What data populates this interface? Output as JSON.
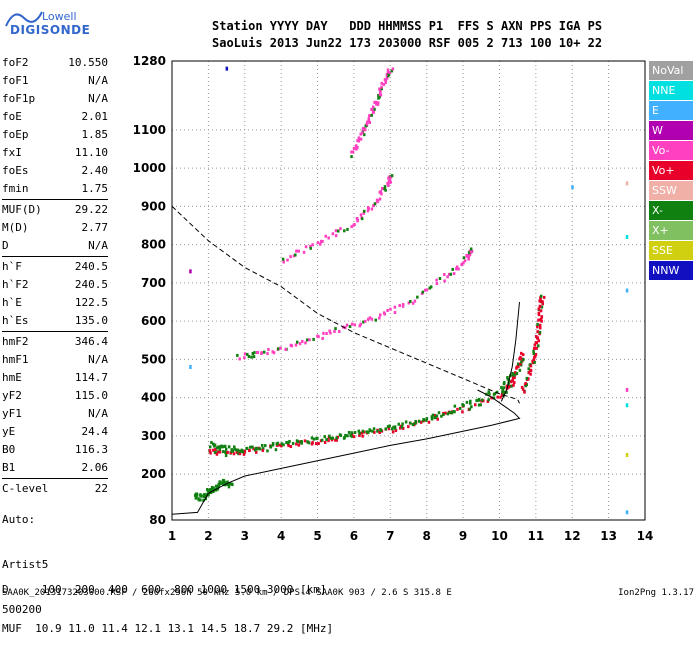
{
  "logo": {
    "line1": "Lowell",
    "line2": "DIGISONDE"
  },
  "header": {
    "row1": "Station YYYY DAY   DDD HHMMSS P1  FFS S AXN PPS IGA PS",
    "row2": "SaoLuis 2013 Jun22 173 203000 RSF 005 2 713 100 10+ 22"
  },
  "params": [
    [
      [
        "foF2",
        "10.550"
      ],
      [
        "foF1",
        "N/A"
      ],
      [
        "foF1p",
        "N/A"
      ],
      [
        "foE",
        "2.01"
      ],
      [
        "foEp",
        "1.85"
      ],
      [
        "fxI",
        "11.10"
      ],
      [
        "foEs",
        "2.40"
      ],
      [
        "fmin",
        "1.75"
      ]
    ],
    [
      [
        "MUF(D)",
        "29.22"
      ],
      [
        "M(D)",
        "2.77"
      ],
      [
        "D",
        "N/A"
      ]
    ],
    [
      [
        "h`F",
        "240.5"
      ],
      [
        "h`F2",
        "240.5"
      ],
      [
        "h`E",
        "122.5"
      ],
      [
        "h`Es",
        "135.0"
      ]
    ],
    [
      [
        "hmF2",
        "346.4"
      ],
      [
        "hmF1",
        "N/A"
      ],
      [
        "hmE",
        "114.7"
      ],
      [
        "yF2",
        "115.0"
      ],
      [
        "yF1",
        "N/A"
      ],
      [
        "yE",
        "24.4"
      ],
      [
        "B0",
        "116.3"
      ],
      [
        "B1",
        "2.06"
      ]
    ],
    [
      [
        "C-level",
        "22"
      ]
    ]
  ],
  "auto": [
    "Auto:",
    "Artist5",
    "500200"
  ],
  "muf_table": {
    "d_label": "D",
    "d_values": [
      "100",
      "200",
      "400",
      "600",
      "800",
      "1000",
      "1500",
      "3000"
    ],
    "d_unit": "[km]",
    "m_label": "MUF",
    "m_values": [
      "10.9",
      "11.0",
      "11.4",
      "12.1",
      "13.1",
      "14.5",
      "18.7",
      "29.2"
    ],
    "m_unit": "[MHz]"
  },
  "footer": {
    "left": "SAA0K_2013173203000.RSF / 260fx256h 50 kHz 5.0 km / DPS-4 SAA0K 903 / 2.6 S 315.8 E",
    "right": "Ion2Png 1.3.17"
  },
  "legend": [
    {
      "label": "NoVal",
      "color": "#a0a0a0"
    },
    {
      "label": "NNE",
      "color": "#00e0e0"
    },
    {
      "label": "E",
      "color": "#40b0ff"
    },
    {
      "label": "W",
      "color": "#b000b0"
    },
    {
      "label": "Vo-",
      "color": "#ff40c0"
    },
    {
      "label": "Vo+",
      "color": "#e8002a"
    },
    {
      "label": "SSW",
      "color": "#f0b0a8"
    },
    {
      "label": "X-",
      "color": "#108010"
    },
    {
      "label": "X+",
      "color": "#80c060"
    },
    {
      "label": "SSE",
      "color": "#d0d010"
    },
    {
      "label": "NNW",
      "color": "#1010c0"
    }
  ],
  "chart_data": {
    "type": "scatter",
    "xlim": [
      1,
      14
    ],
    "ylim": [
      80,
      1280
    ],
    "x_ticks": [
      "1",
      "2",
      "3",
      "4",
      "5",
      "6",
      "7",
      "8",
      "9",
      "10",
      "11",
      "12",
      "13",
      "14"
    ],
    "y_ticks": [
      80,
      200,
      300,
      400,
      500,
      600,
      700,
      800,
      900,
      1000,
      1100,
      1280
    ],
    "grid": "dotted",
    "traces": [
      {
        "name": "O-trace F",
        "color": "#e8002a",
        "points": [
          [
            2.0,
            265
          ],
          [
            2.5,
            258
          ],
          [
            3.0,
            262
          ],
          [
            4.0,
            275
          ],
          [
            5.0,
            290
          ],
          [
            6.0,
            305
          ],
          [
            7.0,
            320
          ],
          [
            8.0,
            345
          ],
          [
            9.0,
            375
          ],
          [
            10.0,
            405
          ],
          [
            10.3,
            440
          ],
          [
            10.5,
            480
          ],
          [
            10.6,
            520
          ]
        ]
      },
      {
        "name": "X-trace F",
        "color": "#108010",
        "points": [
          [
            2.0,
            280
          ],
          [
            2.5,
            270
          ],
          [
            3.0,
            268
          ],
          [
            4.0,
            282
          ],
          [
            5.0,
            295
          ],
          [
            6.0,
            310
          ],
          [
            7.0,
            325
          ],
          [
            8.0,
            350
          ],
          [
            9.0,
            382
          ],
          [
            10.0,
            425
          ],
          [
            10.4,
            470
          ]
        ]
      },
      {
        "name": "Vo+ tail",
        "color": "#e8002a",
        "points": [
          [
            10.6,
            420
          ],
          [
            10.8,
            470
          ],
          [
            10.95,
            520
          ],
          [
            11.05,
            580
          ],
          [
            11.1,
            640
          ],
          [
            11.15,
            665
          ]
        ]
      },
      {
        "name": "2F",
        "color": "#ff40c0",
        "points": [
          [
            2.8,
            510
          ],
          [
            3.5,
            520
          ],
          [
            4.5,
            545
          ],
          [
            5.5,
            580
          ],
          [
            6.5,
            610
          ],
          [
            7.5,
            650
          ],
          [
            8.5,
            720
          ],
          [
            9.1,
            770
          ],
          [
            9.2,
            790
          ]
        ]
      },
      {
        "name": "3F",
        "color": "#ff40c0",
        "points": [
          [
            4.0,
            760
          ],
          [
            5.0,
            810
          ],
          [
            6.0,
            860
          ],
          [
            6.5,
            905
          ],
          [
            6.9,
            960
          ],
          [
            7.0,
            980
          ]
        ]
      },
      {
        "name": "4F",
        "color": "#ff40c0",
        "points": [
          [
            5.9,
            1040
          ],
          [
            6.2,
            1090
          ],
          [
            6.4,
            1130
          ],
          [
            6.6,
            1180
          ],
          [
            6.8,
            1230
          ],
          [
            7.0,
            1270
          ]
        ]
      },
      {
        "name": "Es",
        "color": "#108010",
        "points": [
          [
            1.6,
            150
          ],
          [
            1.8,
            140
          ],
          [
            2.0,
            160
          ],
          [
            2.2,
            170
          ],
          [
            2.4,
            185
          ],
          [
            2.6,
            170
          ]
        ]
      }
    ],
    "profile_solid": [
      [
        1.0,
        95
      ],
      [
        1.7,
        100
      ],
      [
        2.0,
        150
      ],
      [
        2.5,
        175
      ],
      [
        3.0,
        195
      ],
      [
        4.0,
        215
      ],
      [
        5.0,
        235
      ],
      [
        6.0,
        255
      ],
      [
        7.0,
        275
      ],
      [
        8.0,
        292
      ],
      [
        9.0,
        312
      ],
      [
        9.8,
        328
      ],
      [
        10.3,
        340
      ],
      [
        10.55,
        346
      ],
      [
        10.4,
        360
      ],
      [
        10.1,
        380
      ],
      [
        9.8,
        400
      ],
      [
        9.4,
        420
      ]
    ],
    "profile_solid_upper": [
      [
        10.05,
        390
      ],
      [
        10.2,
        420
      ],
      [
        10.35,
        480
      ],
      [
        10.45,
        550
      ],
      [
        10.55,
        650
      ]
    ],
    "profile_dashed": [
      [
        1.0,
        900
      ],
      [
        2.0,
        810
      ],
      [
        3.0,
        740
      ],
      [
        4.0,
        690
      ],
      [
        5.0,
        620
      ],
      [
        6.0,
        570
      ],
      [
        7.0,
        530
      ],
      [
        8.0,
        490
      ],
      [
        9.0,
        450
      ],
      [
        10.0,
        410
      ],
      [
        10.5,
        395
      ],
      [
        10.55,
        385
      ]
    ],
    "side_dots": [
      {
        "x": 12.0,
        "y": 950,
        "color": "#40b0ff"
      },
      {
        "x": 13.5,
        "y": 960,
        "color": "#f0b0a8"
      },
      {
        "x": 13.5,
        "y": 820,
        "color": "#00e0e0"
      },
      {
        "x": 13.5,
        "y": 680,
        "color": "#40b0ff"
      },
      {
        "x": 13.5,
        "y": 420,
        "color": "#ff40c0"
      },
      {
        "x": 13.5,
        "y": 380,
        "color": "#00e0e0"
      },
      {
        "x": 13.5,
        "y": 250,
        "color": "#d0d010"
      },
      {
        "x": 13.5,
        "y": 100,
        "color": "#40b0ff"
      },
      {
        "x": 2.5,
        "y": 1260,
        "color": "#1010c0"
      },
      {
        "x": 1.5,
        "y": 730,
        "color": "#b000b0"
      },
      {
        "x": 1.5,
        "y": 480,
        "color": "#40b0ff"
      }
    ]
  }
}
